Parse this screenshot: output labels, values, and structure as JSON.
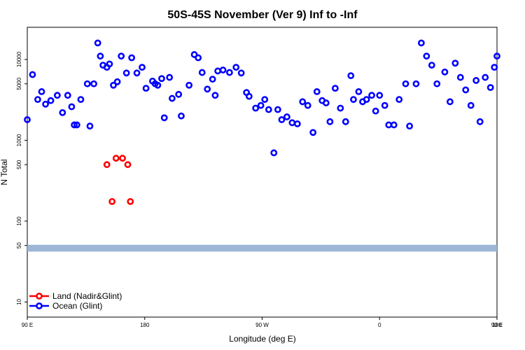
{
  "chart_data": {
    "type": "scatter",
    "title": "50S-45S November (Ver 9)   Inf to -Inf",
    "xlabel": "Longitude (deg E)",
    "ylabel": "N Total",
    "x_range": [
      90,
      450
    ],
    "x_ticks": [
      {
        "value": 90,
        "label": "90 E"
      },
      {
        "value": 180,
        "label": "180"
      },
      {
        "value": 270,
        "label": "90 W"
      },
      {
        "value": 360,
        "label": "0"
      },
      {
        "value": 450,
        "label": "90 E"
      },
      {
        "value": 540,
        "label": "180"
      }
    ],
    "y_scale": "log",
    "y_range": [
      6.5,
      25000
    ],
    "y_ticks": [
      {
        "value": 10,
        "label": "10"
      },
      {
        "value": 50,
        "label": "50"
      },
      {
        "value": 100,
        "label": "100"
      },
      {
        "value": 500,
        "label": "500"
      },
      {
        "value": 1000,
        "label": "1000"
      },
      {
        "value": 5000,
        "label": "5000"
      },
      {
        "value": 10000,
        "label": "10000"
      }
    ],
    "band": {
      "y_low": 42,
      "y_high": 51,
      "color": "#9db6d6"
    },
    "grid": false,
    "legend_position": "bottom-left",
    "series": [
      {
        "name": "Land (Nadir&Glint)",
        "color": "#ff0000",
        "x": [
          167,
          169,
          151,
          155,
          158,
          163
        ],
        "y": [
          500,
          175,
          500,
          175,
          600,
          600
        ]
      },
      {
        "name": "Ocean (Glint)",
        "color": "#0000ff",
        "x": [
          90,
          94,
          98,
          101,
          104,
          108,
          113,
          117,
          121,
          124,
          126,
          128,
          131,
          136,
          138,
          141,
          144,
          146,
          148,
          151,
          153,
          156,
          159,
          162,
          166,
          170,
          174,
          178,
          181,
          186,
          188,
          190,
          193,
          195,
          199,
          201,
          206,
          208,
          214,
          218,
          221,
          224,
          228,
          232,
          234,
          236,
          240,
          245,
          250,
          254,
          258,
          260,
          265,
          269,
          272,
          275,
          279,
          282,
          285,
          289,
          293,
          297,
          301,
          305,
          309,
          312,
          316,
          319,
          322,
          326,
          330,
          334,
          338,
          340,
          344,
          347,
          350,
          354,
          357,
          360,
          364,
          367,
          371,
          375,
          380,
          383,
          388,
          392,
          396,
          400,
          404,
          410,
          414,
          418,
          422,
          426,
          430,
          434,
          437,
          441,
          445,
          448,
          450
        ],
        "y": [
          1800,
          6500,
          3200,
          4000,
          2800,
          3100,
          3600,
          2200,
          3600,
          2600,
          1550,
          1550,
          3200,
          5000,
          1500,
          5000,
          16000,
          11000,
          8500,
          8000,
          8800,
          4800,
          5300,
          11000,
          6800,
          10500,
          6800,
          8000,
          4400,
          5400,
          5000,
          4800,
          5800,
          1900,
          6000,
          3300,
          3700,
          2000,
          4800,
          11500,
          10500,
          6900,
          4300,
          5700,
          3600,
          7200,
          7400,
          6900,
          8000,
          6800,
          3900,
          3500,
          2500,
          2700,
          3200,
          2400,
          700,
          2400,
          1800,
          1950,
          1650,
          1600,
          3000,
          2700,
          1250,
          4000,
          3100,
          2900,
          1700,
          4400,
          2500,
          1700,
          6300,
          3200,
          4000,
          3000,
          3200,
          3600,
          2300,
          3600,
          2700,
          1550,
          1550,
          3200,
          5000,
          1500,
          5000,
          16000,
          11000,
          8500,
          5000,
          7000,
          3000,
          9000,
          6000,
          4200,
          2700,
          5500,
          1700,
          6000,
          4500,
          8000,
          11000
        ]
      }
    ]
  }
}
